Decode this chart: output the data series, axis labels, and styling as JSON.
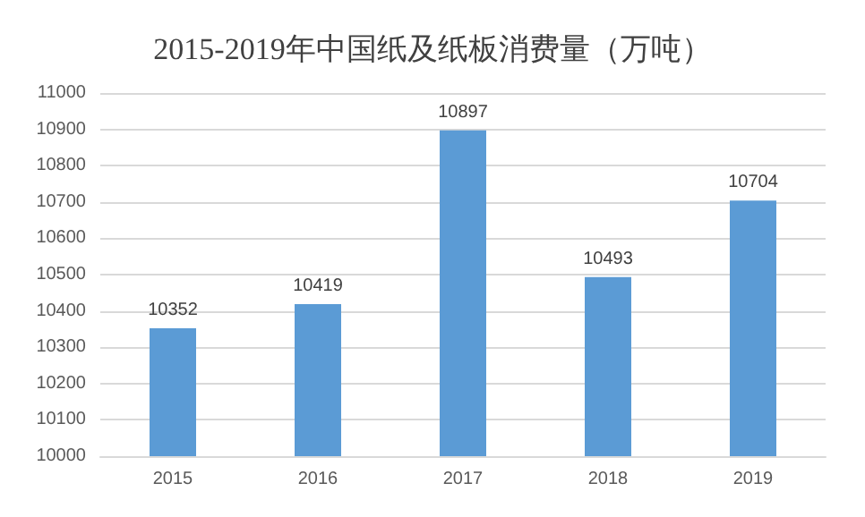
{
  "chart_data": {
    "type": "bar",
    "title": "2015-2019年中国纸及纸板消费量（万吨）",
    "categories": [
      "2015",
      "2016",
      "2017",
      "2018",
      "2019"
    ],
    "values": [
      10352,
      10419,
      10897,
      10493,
      10704
    ],
    "color": "#5b9bd5",
    "ylim": [
      10000,
      11000
    ],
    "yticks": [
      10000,
      10100,
      10200,
      10300,
      10400,
      10500,
      10600,
      10700,
      10800,
      10900,
      11000
    ],
    "grid": "y",
    "data_labels": true
  }
}
